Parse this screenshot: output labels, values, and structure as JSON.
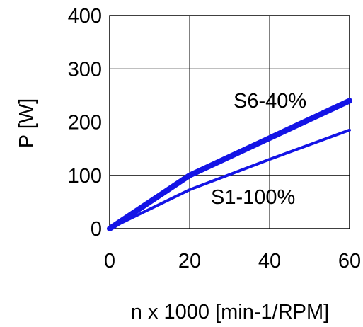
{
  "chart_data": {
    "type": "line",
    "title": "",
    "xlabel": "n x 1000 [min-1/RPM]",
    "ylabel": "P [W]",
    "xlim": [
      0,
      60
    ],
    "ylim": [
      0,
      400
    ],
    "xticks": [
      0,
      20,
      40,
      60
    ],
    "yticks": [
      0,
      100,
      200,
      300,
      400
    ],
    "grid": true,
    "legend": "none",
    "series": [
      {
        "name": "S6-40%",
        "color": "#1414e6",
        "emphasis": "thick",
        "x": [
          0,
          20,
          40,
          60
        ],
        "y": [
          0,
          100,
          170,
          240
        ]
      },
      {
        "name": "S1-100%",
        "color": "#1414e6",
        "emphasis": "thin",
        "x": [
          0,
          20,
          40,
          60
        ],
        "y": [
          0,
          73,
          130,
          185
        ]
      }
    ]
  }
}
